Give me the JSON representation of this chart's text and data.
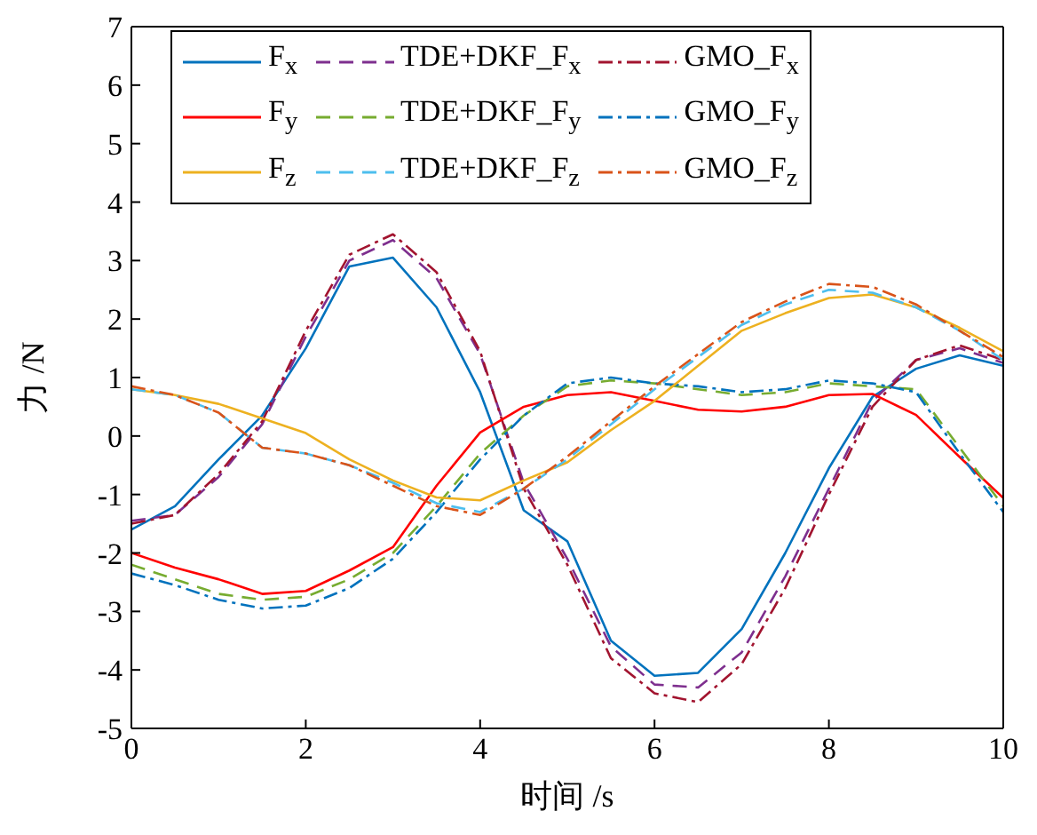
{
  "chart_data": {
    "type": "line",
    "xlabel": "时间 /s",
    "ylabel": "力 /N",
    "x": [
      0,
      0.5,
      1,
      1.5,
      2,
      2.5,
      3,
      3.5,
      4,
      4.5,
      5,
      5.5,
      6,
      6.5,
      7,
      7.5,
      8,
      8.5,
      9,
      9.5,
      10
    ],
    "xlim": [
      0,
      10
    ],
    "xticks": [
      0,
      2,
      4,
      6,
      8,
      10
    ],
    "ylim": [
      -5,
      7
    ],
    "yticks": [
      -5,
      -4,
      -3,
      -2,
      -1,
      0,
      1,
      2,
      3,
      4,
      5,
      6,
      7
    ],
    "grid": false,
    "legend": "top",
    "marker": "none",
    "series": [
      {
        "name": "F$_{x}$",
        "color": "#0072bd",
        "line_style": "solid",
        "values": [
          -1.6,
          -1.2,
          -0.4,
          0.35,
          1.5,
          2.9,
          3.05,
          2.2,
          0.75,
          -1.27,
          -1.8,
          -3.5,
          -4.1,
          -4.05,
          -3.3,
          -2.0,
          -0.55,
          0.67,
          1.15,
          1.38,
          1.2
        ]
      },
      {
        "name": "TDE+DKF_F$_{x}$",
        "color": "#7e2f8e",
        "line_style": "dashed",
        "values": [
          -1.45,
          -1.35,
          -0.7,
          0.2,
          1.7,
          3.0,
          3.35,
          2.7,
          1.4,
          -0.8,
          -2.1,
          -3.6,
          -4.25,
          -4.3,
          -3.7,
          -2.4,
          -0.9,
          0.6,
          1.3,
          1.5,
          1.25
        ]
      },
      {
        "name": "GMO_F$_{x}$",
        "color": "#a2142f",
        "line_style": "dashdot",
        "values": [
          -1.5,
          -1.35,
          -0.65,
          0.25,
          1.8,
          3.1,
          3.45,
          2.8,
          1.45,
          -0.9,
          -2.2,
          -3.8,
          -4.4,
          -4.55,
          -3.9,
          -2.6,
          -1.0,
          0.5,
          1.3,
          1.55,
          1.3
        ]
      },
      {
        "name": "F$_{y}$",
        "color": "#ff0000",
        "line_style": "solid",
        "values": [
          -2.0,
          -2.25,
          -2.45,
          -2.7,
          -2.65,
          -2.3,
          -1.9,
          -0.85,
          0.06,
          0.5,
          0.7,
          0.75,
          0.6,
          0.45,
          0.42,
          0.5,
          0.7,
          0.72,
          0.36,
          -0.36,
          -1.06
        ]
      },
      {
        "name": "TDE+DKF_F$_{y}$",
        "color": "#77ac30",
        "line_style": "dashed",
        "values": [
          -2.2,
          -2.45,
          -2.7,
          -2.8,
          -2.75,
          -2.45,
          -2.0,
          -1.2,
          -0.3,
          0.35,
          0.85,
          0.95,
          0.9,
          0.8,
          0.7,
          0.75,
          0.9,
          0.85,
          0.8,
          -0.2,
          -1.2
        ]
      },
      {
        "name": "GMO_F$_{y}$",
        "color": "#0072bd",
        "line_style": "dashdot",
        "values": [
          -2.35,
          -2.55,
          -2.8,
          -2.95,
          -2.9,
          -2.6,
          -2.1,
          -1.3,
          -0.4,
          0.35,
          0.9,
          1.0,
          0.9,
          0.85,
          0.75,
          0.8,
          0.95,
          0.9,
          0.75,
          -0.3,
          -1.3
        ]
      },
      {
        "name": "F$_{z}$",
        "color": "#edb120",
        "line_style": "solid",
        "values": [
          0.8,
          0.7,
          0.55,
          0.3,
          0.05,
          -0.4,
          -0.76,
          -1.05,
          -1.1,
          -0.76,
          -0.45,
          0.1,
          0.6,
          1.2,
          1.8,
          2.1,
          2.36,
          2.42,
          2.2,
          1.85,
          1.45
        ]
      },
      {
        "name": "TDE+DKF_F$_{z}$",
        "color": "#4dbeee",
        "line_style": "dashed",
        "values": [
          0.8,
          0.7,
          0.4,
          -0.2,
          -0.3,
          -0.5,
          -0.8,
          -1.15,
          -1.3,
          -0.9,
          -0.4,
          0.2,
          0.8,
          1.35,
          1.9,
          2.25,
          2.5,
          2.45,
          2.2,
          1.8,
          1.3
        ]
      },
      {
        "name": "GMO_F$_{z}$",
        "color": "#d95319",
        "line_style": "dashdot",
        "values": [
          0.85,
          0.7,
          0.4,
          -0.2,
          -0.3,
          -0.5,
          -0.85,
          -1.2,
          -1.35,
          -0.9,
          -0.35,
          0.25,
          0.85,
          1.4,
          1.95,
          2.3,
          2.6,
          2.55,
          2.25,
          1.8,
          1.35
        ]
      }
    ]
  }
}
